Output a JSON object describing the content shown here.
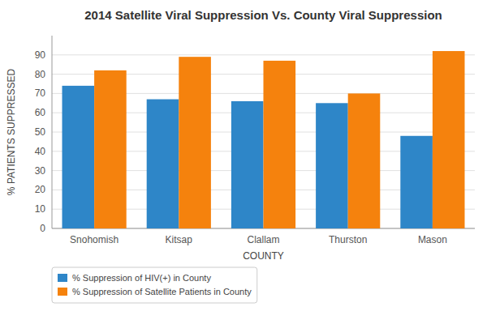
{
  "chart_data": {
    "type": "bar",
    "title": "2014 Satellite Viral Suppression Vs. County Viral Suppression",
    "x_label": "COUNTY",
    "y_label": "% PATIENTS SUPPRESSED",
    "categories": [
      "Snohomish",
      "Kitsap",
      "Clallam",
      "Thurston",
      "Mason"
    ],
    "series": [
      {
        "name": "% Suppression of HIV(+) in County",
        "color": "#2e86c8",
        "values": [
          74,
          67,
          66,
          65,
          48
        ]
      },
      {
        "name": "% Suppression of Satellite Patients in County",
        "color": "#f5820d",
        "values": [
          82,
          89,
          87,
          70,
          92
        ]
      }
    ],
    "ylim": [
      0,
      100
    ],
    "yticks": [
      0,
      10,
      20,
      30,
      40,
      50,
      60,
      70,
      80,
      90
    ],
    "grid": true,
    "legend": "lower left"
  }
}
